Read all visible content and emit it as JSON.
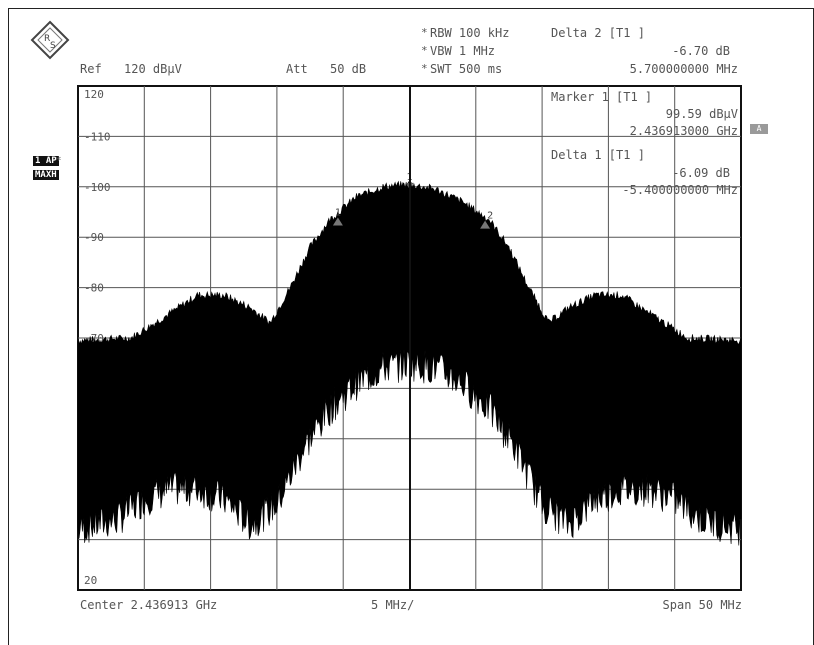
{
  "header": {
    "ref_label": "Ref",
    "ref_value": "120 dBµV",
    "att_label": "Att",
    "att_value": "50 dB",
    "rbw": "RBW 100 kHz",
    "vbw": "VBW 1 MHz",
    "swt": "SWT 500 ms",
    "star_mark": "*",
    "delta2_title": "Delta 2 [T1 ]",
    "delta2_level": "-6.70 dB",
    "delta2_freq": "5.700000000 MHz"
  },
  "markers_panel": {
    "marker1_title": "Marker 1 [T1 ]",
    "marker1_level": "99.59 dBµV",
    "marker1_freq": "2.436913000 GHz",
    "delta1_title": "Delta 1 [T1 ]",
    "delta1_level": "-6.09 dB",
    "delta1_freq": "-5.400000000 MHz"
  },
  "side": {
    "trace_badge": "1 AP",
    "trace_mode": "MAXH",
    "ref_badge": "A"
  },
  "footer": {
    "center": "Center 2.436913 GHz",
    "div": "5 MHz/",
    "span": "Span 50 MHz"
  },
  "chart_data": {
    "type": "area",
    "title": "",
    "xlabel": "",
    "ylabel": "",
    "x_unit": "MHz offset from center 2.436913 GHz",
    "xlim": [
      -25,
      25
    ],
    "ylim": [
      20,
      120
    ],
    "y_unit": "dBµV",
    "y_tick_labels": [
      "120",
      "110",
      "100",
      "90",
      "80",
      "70",
      "20"
    ],
    "y_ticks": [
      120,
      110,
      100,
      90,
      80,
      70,
      20
    ],
    "grid": true,
    "x_gridlines": 10,
    "y_gridlines": 10,
    "trace_color": "#000000",
    "series": [
      {
        "role": "max-hold peak envelope",
        "x": [
          -25,
          -21,
          -18,
          -16,
          -14,
          -12,
          -10.5,
          -9,
          -7.5,
          -6,
          -4,
          -2,
          0,
          2,
          4,
          6,
          7.5,
          9,
          10.5,
          12,
          14,
          16,
          18,
          21,
          25
        ],
        "values": [
          69.5,
          70,
          75,
          78.5,
          78.5,
          76,
          73,
          80,
          88,
          93.5,
          98,
          100,
          100.5,
          99.5,
          97,
          93.5,
          88,
          80,
          73,
          76,
          78.5,
          78.5,
          75,
          70,
          69.5
        ]
      },
      {
        "role": "lower noise floor envelope",
        "x": [
          -25,
          -22,
          -20,
          -18,
          -16,
          -14,
          -12,
          -10,
          -8,
          -6,
          -4,
          -2,
          0,
          2,
          4,
          6,
          8,
          10,
          12,
          14,
          16,
          18,
          20,
          22,
          25
        ],
        "values": [
          32,
          34,
          38,
          40,
          40,
          38,
          33,
          37,
          48,
          56,
          61,
          64,
          65,
          64,
          61,
          56,
          48,
          37,
          33,
          38,
          40,
          40,
          38,
          34,
          32
        ]
      }
    ],
    "markers": [
      {
        "label": "1",
        "x": 0,
        "y": 99.59
      },
      {
        "label": "1",
        "x": -5.4,
        "y": 93.5
      },
      {
        "label": "2",
        "x": 5.7,
        "y": 92.89
      }
    ]
  }
}
